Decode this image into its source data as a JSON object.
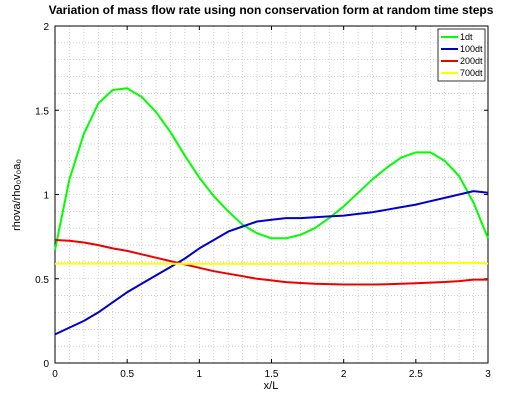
{
  "chart_data": {
    "type": "line",
    "title": "Variation of mass flow rate using non conservation form at random time steps",
    "xlabel": "x/L",
    "ylabel": "rhova/rho₀v₀a₀",
    "xlim": [
      0,
      3
    ],
    "ylim": [
      0,
      2
    ],
    "xticks": [
      0,
      0.5,
      1,
      1.5,
      2,
      2.5,
      3
    ],
    "xtick_labels": [
      "0",
      "0.5",
      "1",
      "1.5",
      "2",
      "2.5",
      "3"
    ],
    "yticks": [
      0,
      0.5,
      1,
      1.5,
      2
    ],
    "ytick_labels": [
      "0",
      "0.5",
      "1",
      "1.5",
      "2"
    ],
    "grid": true,
    "legend_position": "top-right",
    "series": [
      {
        "name": "1dt",
        "color": "#00ff00",
        "x": [
          0,
          0.1,
          0.2,
          0.3,
          0.4,
          0.5,
          0.6,
          0.7,
          0.8,
          0.9,
          1.0,
          1.1,
          1.2,
          1.3,
          1.4,
          1.5,
          1.6,
          1.7,
          1.8,
          1.9,
          2.0,
          2.1,
          2.2,
          2.3,
          2.4,
          2.5,
          2.6,
          2.7,
          2.8,
          2.9,
          3.0
        ],
        "y": [
          0.67,
          1.09,
          1.36,
          1.54,
          1.62,
          1.63,
          1.58,
          1.49,
          1.37,
          1.23,
          1.1,
          0.99,
          0.9,
          0.82,
          0.77,
          0.74,
          0.74,
          0.76,
          0.8,
          0.86,
          0.93,
          1.01,
          1.09,
          1.16,
          1.22,
          1.25,
          1.25,
          1.2,
          1.11,
          0.95,
          0.74
        ]
      },
      {
        "name": "100dt",
        "color": "#0000cc",
        "x": [
          0,
          0.1,
          0.2,
          0.3,
          0.4,
          0.5,
          0.6,
          0.7,
          0.8,
          0.9,
          1.0,
          1.1,
          1.2,
          1.3,
          1.4,
          1.5,
          1.6,
          1.7,
          1.8,
          1.9,
          2.0,
          2.1,
          2.2,
          2.3,
          2.4,
          2.5,
          2.6,
          2.7,
          2.8,
          2.9,
          3.0
        ],
        "y": [
          0.17,
          0.21,
          0.25,
          0.3,
          0.36,
          0.42,
          0.47,
          0.52,
          0.57,
          0.62,
          0.68,
          0.73,
          0.78,
          0.81,
          0.84,
          0.85,
          0.86,
          0.86,
          0.865,
          0.87,
          0.875,
          0.885,
          0.895,
          0.91,
          0.925,
          0.94,
          0.96,
          0.98,
          1.0,
          1.02,
          1.01
        ]
      },
      {
        "name": "200dt",
        "color": "#ee0000",
        "x": [
          0,
          0.1,
          0.2,
          0.3,
          0.4,
          0.5,
          0.6,
          0.7,
          0.8,
          0.9,
          1.0,
          1.1,
          1.2,
          1.3,
          1.4,
          1.5,
          1.6,
          1.7,
          1.8,
          1.9,
          2.0,
          2.1,
          2.2,
          2.3,
          2.4,
          2.5,
          2.6,
          2.7,
          2.8,
          2.9,
          3.0
        ],
        "y": [
          0.73,
          0.725,
          0.715,
          0.7,
          0.68,
          0.665,
          0.645,
          0.625,
          0.605,
          0.585,
          0.565,
          0.545,
          0.53,
          0.515,
          0.5,
          0.49,
          0.48,
          0.475,
          0.47,
          0.468,
          0.466,
          0.466,
          0.466,
          0.467,
          0.47,
          0.473,
          0.477,
          0.481,
          0.486,
          0.495,
          0.495
        ]
      },
      {
        "name": "700dt",
        "color": "#ffff00",
        "x": [
          0,
          0.5,
          1.0,
          1.5,
          2.0,
          2.5,
          2.9,
          3.0
        ],
        "y": [
          0.59,
          0.59,
          0.588,
          0.588,
          0.59,
          0.592,
          0.595,
          0.59
        ]
      }
    ]
  }
}
